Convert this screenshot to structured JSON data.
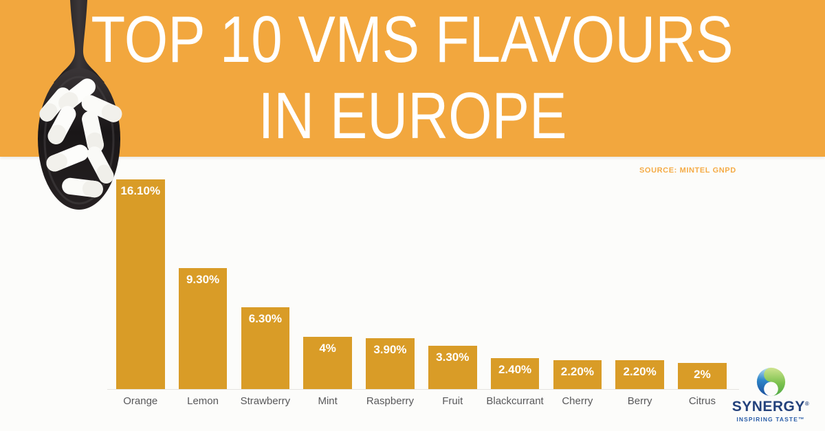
{
  "header": {
    "title_line1": "TOP 10 VMS FLAVOURS",
    "title_line2": "IN EUROPE",
    "background_color": "#F2A73E",
    "text_color": "#FFFFFF"
  },
  "source_note": "SOURCE: MINTEL GNPD",
  "chart_data": {
    "type": "bar",
    "title": "TOP 10 VMS FLAVOURS IN EUROPE",
    "categories": [
      "Orange",
      "Lemon",
      "Strawberry",
      "Mint",
      "Raspberry",
      "Fruit",
      "Blackcurrant",
      "Cherry",
      "Berry",
      "Citrus"
    ],
    "values": [
      16.1,
      9.3,
      6.3,
      4.0,
      3.9,
      3.3,
      2.4,
      2.2,
      2.2,
      2.0
    ],
    "value_labels": [
      "16.10%",
      "9.30%",
      "6.30%",
      "4%",
      "3.90%",
      "3.30%",
      "2.40%",
      "2.20%",
      "2.20%",
      "2%"
    ],
    "xlabel": "",
    "ylabel": "",
    "ylim": [
      0,
      16.1
    ],
    "grid": false,
    "legend": false,
    "bar_color": "#D99C27",
    "value_label_color": "#FFFFFF",
    "category_label_color": "#58585A"
  },
  "logo": {
    "name": "SYNERGY",
    "registered_mark": "®",
    "tagline": "INSPIRING TASTE™",
    "name_color": "#24427C",
    "tagline_color": "#2A5DA8",
    "swirl_blue": "#1B4E9B",
    "swirl_green": "#6DBE4B"
  },
  "illustration": {
    "name": "spoon-with-capsules",
    "spoon_color": "#1E1B1C",
    "capsule_color": "#FBFBF8"
  }
}
